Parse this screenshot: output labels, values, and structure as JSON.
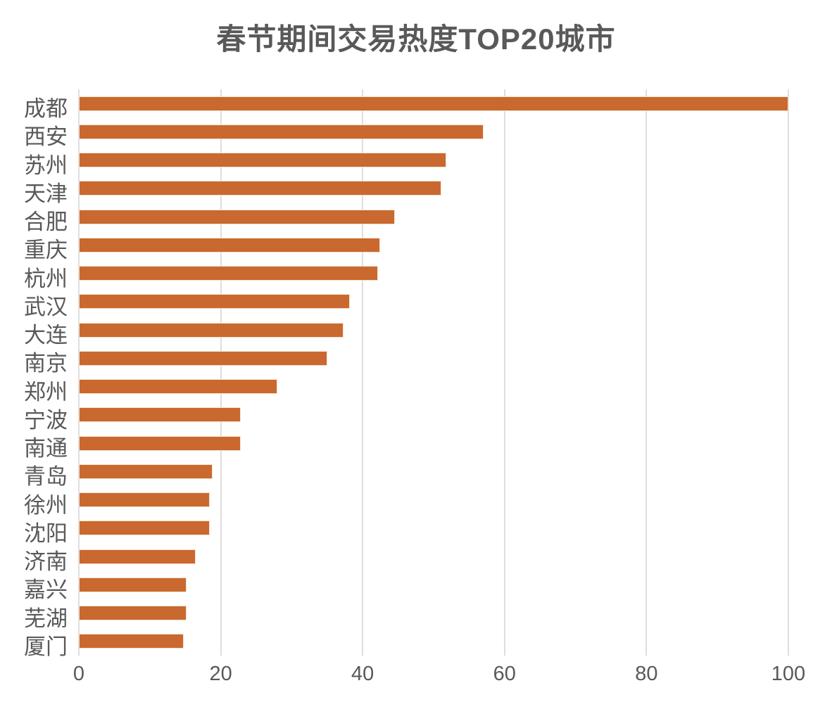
{
  "title": "春节期间交易热度TOP20城市",
  "colors": {
    "bar": "#c9682f",
    "bar_edge": "#f5e2cd",
    "grid": "#dedede",
    "text": "#595959",
    "background": "#ffffff"
  },
  "chart_data": {
    "type": "bar",
    "orientation": "horizontal",
    "title": "春节期间交易热度TOP20城市",
    "categories": [
      "成都",
      "西安",
      "苏州",
      "天津",
      "合肥",
      "重庆",
      "杭州",
      "武汉",
      "大连",
      "南京",
      "郑州",
      "宁波",
      "南通",
      "青岛",
      "徐州",
      "沈阳",
      "济南",
      "嘉兴",
      "芜湖",
      "厦门"
    ],
    "values": [
      100,
      57,
      51.8,
      51.1,
      44.5,
      42.5,
      42.2,
      38.2,
      37.3,
      35,
      28,
      22.8,
      22.8,
      18.8,
      18.5,
      18.5,
      16.5,
      15.2,
      15.2,
      14.8
    ],
    "xlabel": "",
    "ylabel": "",
    "xlim": [
      0,
      100
    ],
    "xticks": [
      0,
      20,
      40,
      60,
      80,
      100
    ],
    "grid": "vertical-only",
    "legend": "none",
    "sort": "descending",
    "category_order": "top-to-bottom"
  }
}
